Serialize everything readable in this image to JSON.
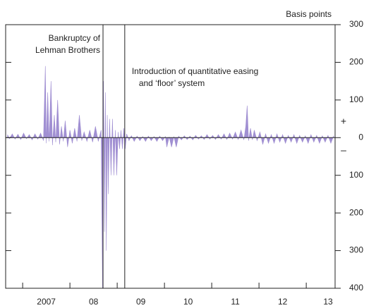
{
  "chart_data": {
    "type": "area",
    "y_axis_label": "Basis points",
    "plus_label": "+",
    "minus_label": "–",
    "xlim": [
      2006.64,
      2013.61
    ],
    "xticks": [
      {
        "value": 2007,
        "label": "2007"
      },
      {
        "value": 2008,
        "label": "08"
      },
      {
        "value": 2009,
        "label": "09"
      },
      {
        "value": 2010,
        "label": "10"
      },
      {
        "value": 2011,
        "label": "11"
      },
      {
        "value": 2012,
        "label": "12"
      },
      {
        "value": 2013,
        "label": "13"
      }
    ],
    "ylim": [
      -400,
      300
    ],
    "yticks": [
      {
        "value": 300,
        "label": "300"
      },
      {
        "value": 200,
        "label": "200"
      },
      {
        "value": 100,
        "label": "100"
      },
      {
        "value": 0,
        "label": "0"
      },
      {
        "value": -100,
        "label": "100"
      },
      {
        "value": -200,
        "label": "200"
      },
      {
        "value": -300,
        "label": "300"
      },
      {
        "value": -400,
        "label": "400"
      }
    ],
    "events": [
      {
        "x": 2008.7,
        "label": [
          "Bankruptcy of",
          "Lehman Brothers"
        ]
      },
      {
        "x": 2009.16,
        "label": [
          "Introduction of quantitative easing",
          "and ‘floor’ system"
        ]
      }
    ],
    "x": [
      2006.68,
      2006.72,
      2006.78,
      2006.84,
      2006.9,
      2006.96,
      2007.02,
      2007.08,
      2007.14,
      2007.2,
      2007.26,
      2007.32,
      2007.38,
      2007.44,
      2007.48,
      2007.5,
      2007.53,
      2007.56,
      2007.6,
      2007.63,
      2007.67,
      2007.7,
      2007.74,
      2007.78,
      2007.82,
      2007.86,
      2007.9,
      2007.95,
      2008.0,
      2008.05,
      2008.1,
      2008.15,
      2008.2,
      2008.25,
      2008.3,
      2008.36,
      2008.42,
      2008.48,
      2008.54,
      2008.6,
      2008.66,
      2008.69,
      2008.71,
      2008.73,
      2008.75,
      2008.77,
      2008.79,
      2008.81,
      2008.84,
      2008.87,
      2008.9,
      2008.93,
      2008.96,
      2008.99,
      2009.02,
      2009.05,
      2009.08,
      2009.11,
      2009.14,
      2009.17,
      2009.2,
      2009.25,
      2009.3,
      2009.36,
      2009.42,
      2009.48,
      2009.54,
      2009.6,
      2009.66,
      2009.72,
      2009.78,
      2009.84,
      2009.9,
      2009.96,
      2010.02,
      2010.05,
      2010.1,
      2010.15,
      2010.2,
      2010.25,
      2010.3,
      2010.36,
      2010.42,
      2010.48,
      2010.54,
      2010.6,
      2010.66,
      2010.72,
      2010.78,
      2010.84,
      2010.9,
      2010.96,
      2011.02,
      2011.08,
      2011.14,
      2011.2,
      2011.26,
      2011.32,
      2011.38,
      2011.44,
      2011.5,
      2011.56,
      2011.62,
      2011.68,
      2011.72,
      2011.75,
      2011.78,
      2011.82,
      2011.86,
      2011.9,
      2011.96,
      2012.02,
      2012.08,
      2012.14,
      2012.2,
      2012.26,
      2012.32,
      2012.38,
      2012.44,
      2012.5,
      2012.56,
      2012.62,
      2012.68,
      2012.74,
      2012.8,
      2012.86,
      2012.92,
      2012.98,
      2013.04,
      2013.1,
      2013.16,
      2013.22,
      2013.28,
      2013.34,
      2013.4,
      2013.46,
      2013.52,
      2013.58
    ],
    "series": [
      {
        "color": "#a08fd2",
        "values": [
          8,
          -3,
          10,
          -4,
          9,
          -5,
          12,
          -3,
          8,
          -6,
          10,
          -4,
          12,
          -8,
          190,
          -15,
          120,
          -10,
          150,
          -20,
          60,
          -12,
          100,
          -18,
          30,
          -10,
          45,
          -25,
          20,
          -15,
          25,
          -10,
          60,
          -8,
          15,
          -10,
          20,
          -12,
          30,
          -10,
          20,
          -400,
          150,
          -250,
          120,
          -300,
          60,
          -150,
          50,
          -100,
          50,
          -100,
          20,
          -100,
          15,
          -30,
          20,
          -30,
          25,
          -30,
          10,
          -8,
          5,
          -10,
          4,
          -8,
          3,
          -10,
          4,
          -8,
          3,
          -10,
          4,
          -8,
          3,
          -25,
          2,
          -25,
          3,
          -25,
          4,
          -6,
          5,
          -5,
          4,
          -6,
          6,
          -4,
          5,
          -5,
          8,
          -4,
          6,
          -5,
          8,
          -4,
          10,
          -5,
          12,
          -4,
          15,
          -5,
          20,
          -6,
          30,
          85,
          -8,
          25,
          -6,
          20,
          -8,
          15,
          -18,
          10,
          -15,
          8,
          -15,
          10,
          -12,
          8,
          -15,
          6,
          -12,
          8,
          -15,
          6,
          -12,
          5,
          -15,
          8,
          -12,
          6,
          -15,
          5,
          -12,
          6,
          -15,
          5
        ]
      }
    ]
  }
}
